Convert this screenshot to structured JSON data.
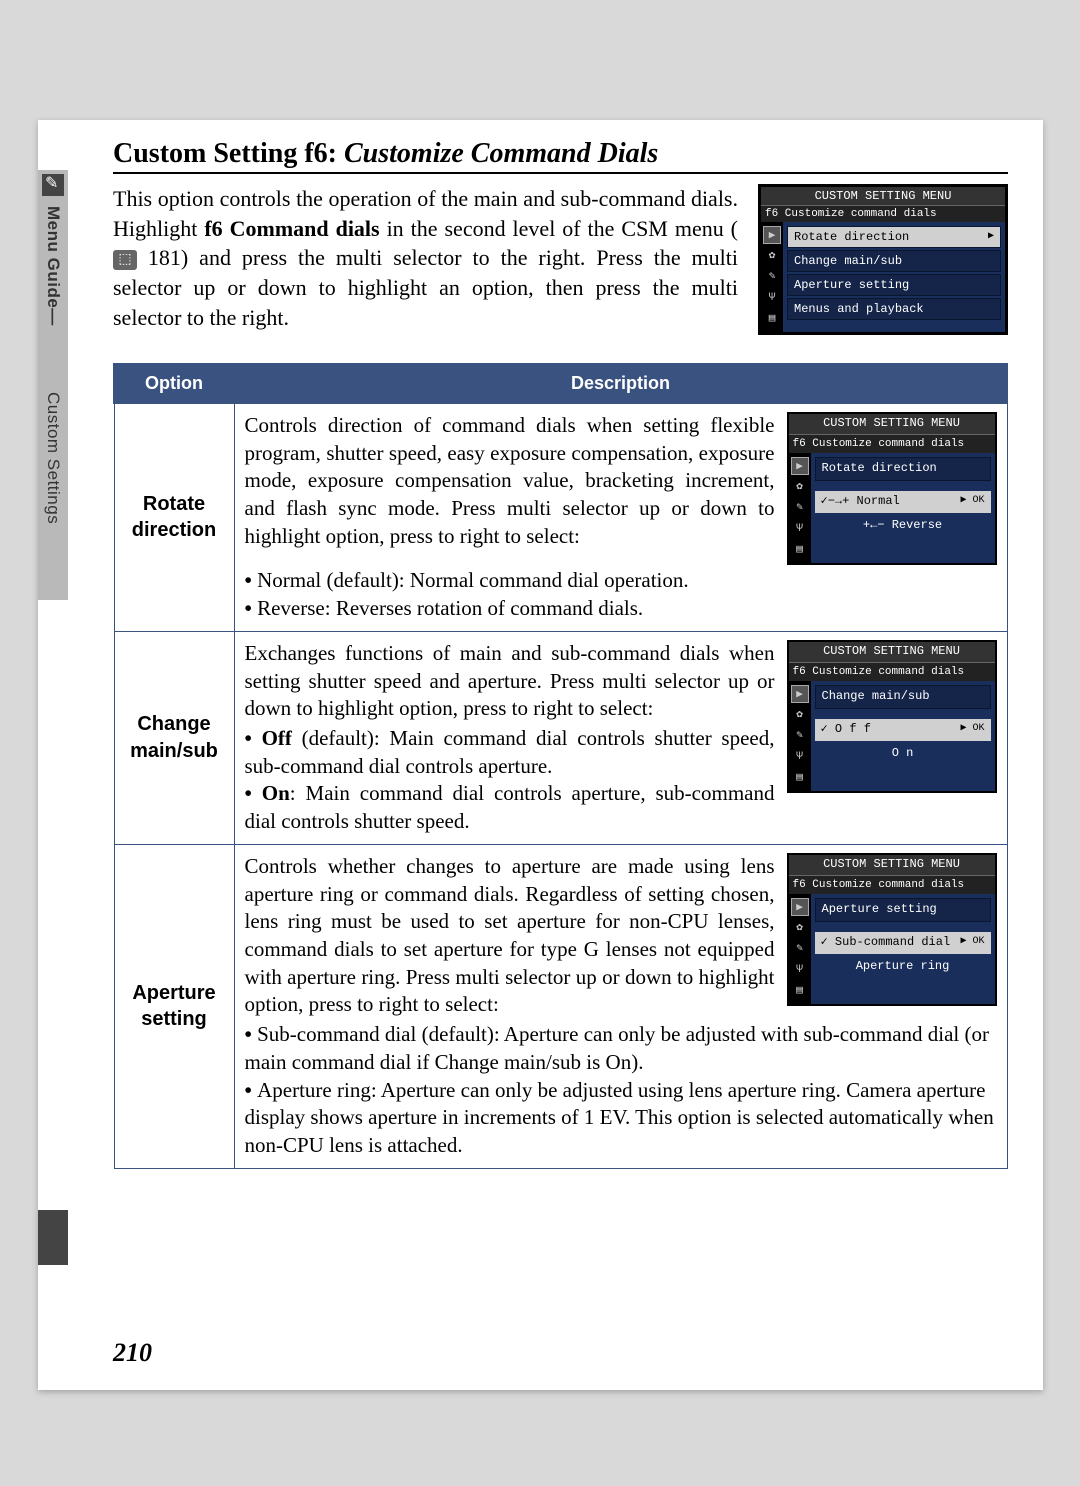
{
  "sidebar": {
    "label1": "Menu Guide—",
    "label2": "Custom Settings"
  },
  "heading": {
    "prefix": "Custom Setting f6: ",
    "italic": "Customize Command Dials"
  },
  "intro": {
    "p1a": "This option controls the operation of the main and sub-command dials.  Highlight ",
    "p1b": "f6 Command dials",
    "p1c": " in the second level of the CSM menu (",
    "p1d": " 181) and press the multi selector to the right.  Press the multi selector up or down to highlight an option, then press the multi selector to the right."
  },
  "cam_main": {
    "title": "CUSTOM SETTING MENU",
    "sub": "f6  Customize command dials",
    "items": [
      "Rotate direction",
      "Change main/sub",
      "Aperture setting",
      "Menus and playback"
    ],
    "selected_ok": "▶"
  },
  "table": {
    "header_option": "Option",
    "header_desc": "Description",
    "rows": [
      {
        "name": "Rotate direction",
        "text": "Controls direction of command dials when setting flexible program, shutter speed, easy exposure compensation, exposure mode, exposure compensation value, bracketing increment, and flash sync mode.  Press multi selector up or down to highlight option, press to right to select:",
        "bullets": [
          {
            "b": "Normal",
            "rest": " (default): Normal command dial operation."
          },
          {
            "b": "Reverse",
            "rest": ": Reverses rotation of command dials."
          }
        ],
        "cam": {
          "title": "CUSTOM SETTING MENU",
          "sub": "f6  Customize command dials",
          "box": "Rotate direction",
          "opt_sel": "✓−→+ Normal",
          "ok": "▶ OK",
          "opt2": "+←− Reverse"
        }
      },
      {
        "name": "Change main/sub",
        "text": "Exchanges functions of main and sub-command dials when setting shutter speed and aperture.  Press multi selector up or down to highlight option, press to right to select:",
        "bullets": [
          {
            "b": "Off",
            "rest": " (default): Main command dial controls shutter speed, sub-command dial controls aperture."
          },
          {
            "b": "On",
            "rest": ": Main command dial controls aperture, sub-command dial controls shutter speed."
          }
        ],
        "cam": {
          "title": "CUSTOM SETTING MENU",
          "sub": "f6  Customize command dials",
          "box": "Change main/sub",
          "opt_sel": "✓    O f f",
          "ok": "▶ OK",
          "opt2": "O n"
        }
      },
      {
        "name": "Aperture setting",
        "text": "Controls whether changes to aperture are made using lens aperture ring or command dials.  Regardless of setting chosen, lens ring must be used to set aperture for non-CPU lenses, command dials to set aperture for type G lenses not equipped with aperture ring.  Press multi selector up or down to highlight option, press to right to select:",
        "bullets": [
          {
            "b": "Sub-command dial",
            "rest": " (default): Aperture can only be adjusted with sub-command dial (or main command dial if "
          },
          {
            "b2": "Change main/sub",
            "rest2": " is "
          },
          {
            "b3": "On",
            "rest3": ")."
          },
          {
            "b": "Aperture ring",
            "rest": ": Aperture can only be adjusted using lens aperture ring.  Camera aperture display shows aperture in increments of 1 EV.  This option is selected automatically when non-CPU lens is attached."
          }
        ],
        "cam": {
          "title": "CUSTOM SETTING MENU",
          "sub": "f6  Customize command dials",
          "box": "Aperture setting",
          "opt_sel": "✓  Sub-command dial",
          "ok": "▶ OK",
          "opt2": "Aperture ring"
        }
      }
    ]
  },
  "page_number": "210",
  "colors": {
    "page_bg": "#ffffff",
    "outer_bg": "#d9d9d9",
    "header_bg": "#3a527f",
    "cam_bg": "#000000",
    "cam_panel": "#1a2e5c"
  }
}
